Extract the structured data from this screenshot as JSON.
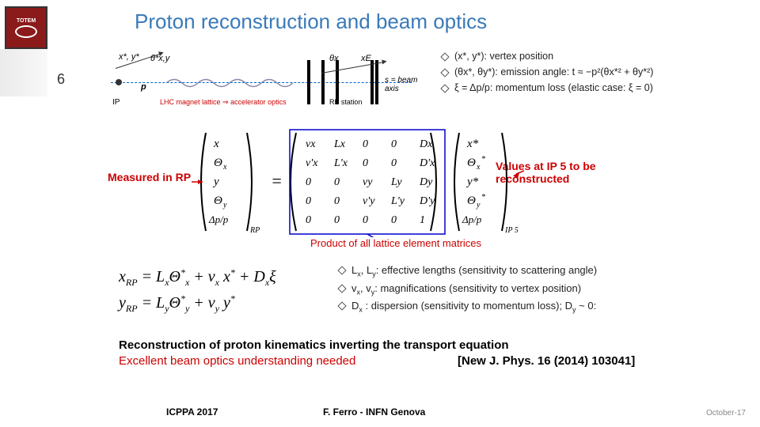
{
  "slide": {
    "title": "Proton reconstruction and beam optics",
    "page_number": "6",
    "logo_text": "TOTEM"
  },
  "diagram": {
    "label_xy": "x*, y*",
    "label_theta": "θ*x,y",
    "label_p": "p",
    "label_ip": "IP",
    "lhc_text": "LHC magnet lattice ⇒ accelerator optics",
    "label_thetax": "θx",
    "label_xe": "xE",
    "label_sbeam": "s = beam axis",
    "label_rp": "RP station",
    "beam_color": "#0066cc",
    "track_color": "#333333"
  },
  "bullets_top": [
    "(x*, y*): vertex position",
    "(θx*, θy*): emission angle: t ≈ −p²(θx*² + θy*²)",
    "ξ = Δp/p: momentum loss (elastic case: ξ = 0)"
  ],
  "matrix": {
    "measured_label": "Measured in RP",
    "values_label": "Values at IP 5 to be reconstructed",
    "product_label": "Product of all lattice element matrices",
    "left_vec": [
      "x",
      "Θx",
      "y",
      "Θy",
      "Δp/p"
    ],
    "left_sub": "RP",
    "right_vec": [
      "x*",
      "Θx*",
      "y*",
      "Θy*",
      "Δp/p"
    ],
    "right_sub": "IP 5",
    "rows": [
      [
        "vx",
        "Lx",
        "0",
        "0",
        "Dx"
      ],
      [
        "v'x",
        "L'x",
        "0",
        "0",
        "D'x"
      ],
      [
        "0",
        "0",
        "vy",
        "Ly",
        "Dy"
      ],
      [
        "0",
        "0",
        "v'y",
        "L'y",
        "D'y"
      ],
      [
        "0",
        "0",
        "0",
        "0",
        "1"
      ]
    ],
    "red_color": "#cc0000",
    "blue_color": "#0000cc"
  },
  "equations": {
    "line1": "xRP = LxΘx* + vx x* + Dxξ",
    "line2": "yRP = LyΘy* + vy y*"
  },
  "bullets_mid": [
    "Lx, Ly: effective lengths (sensitivity to scattering angle)",
    "vx, vy: magnifications (sensitivity to vertex position)",
    "Dx : dispersion (sensitivity to momentum loss); Dy ~ 0:"
  ],
  "conclusion": {
    "line1": "Reconstruction of proton kinematics inverting the transport equation",
    "line2": "Excellent beam optics understanding needed",
    "ref": "[New J. Phys. 16 (2014) 103041]"
  },
  "footer": {
    "left": "ICPPA 2017",
    "mid": "F. Ferro - INFN Genova",
    "right": "October-17"
  },
  "colors": {
    "title": "#3a7ab8",
    "red": "#cc0000",
    "text": "#222222",
    "footer_gray": "#888888"
  }
}
